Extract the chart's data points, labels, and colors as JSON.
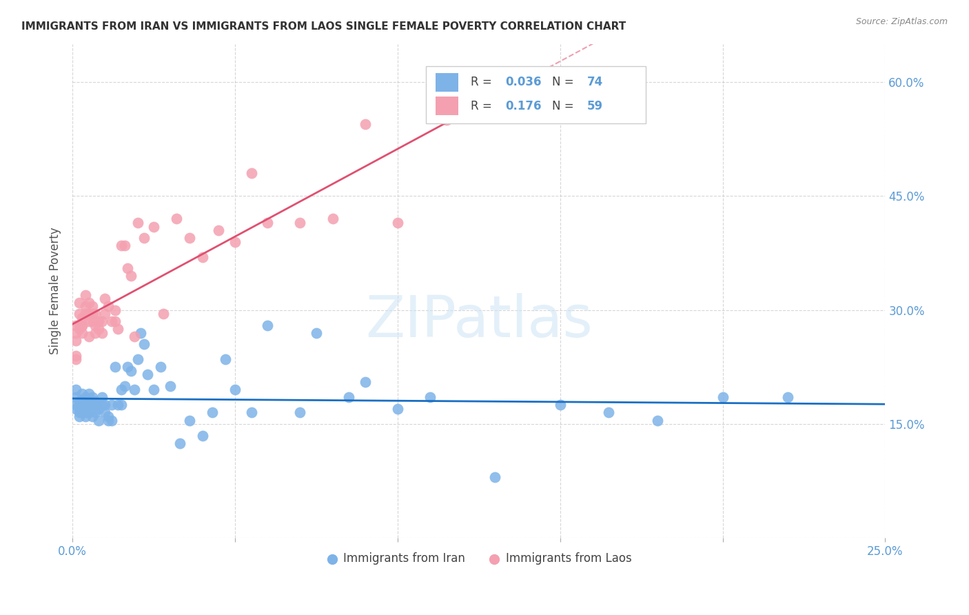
{
  "title": "IMMIGRANTS FROM IRAN VS IMMIGRANTS FROM LAOS SINGLE FEMALE POVERTY CORRELATION CHART",
  "source": "Source: ZipAtlas.com",
  "ylabel": "Single Female Poverty",
  "x_min": 0.0,
  "x_max": 0.25,
  "y_min": 0.0,
  "y_max": 0.65,
  "iran_color": "#7EB3E8",
  "laos_color": "#F4A0B0",
  "iran_R": 0.036,
  "iran_N": 74,
  "laos_R": 0.176,
  "laos_N": 59,
  "iran_line_color": "#1a6fc4",
  "laos_line_color": "#e05070",
  "grid_color": "#cccccc",
  "watermark_color": "#cde4f5",
  "tick_color_blue": "#5b9bd5",
  "tick_color_dark": "#555555",
  "iran_x": [
    0.001,
    0.001,
    0.001,
    0.001,
    0.002,
    0.002,
    0.002,
    0.002,
    0.002,
    0.002,
    0.003,
    0.003,
    0.003,
    0.003,
    0.003,
    0.004,
    0.004,
    0.004,
    0.004,
    0.004,
    0.005,
    0.005,
    0.005,
    0.006,
    0.006,
    0.006,
    0.007,
    0.007,
    0.007,
    0.008,
    0.008,
    0.009,
    0.009,
    0.01,
    0.01,
    0.011,
    0.011,
    0.012,
    0.012,
    0.013,
    0.014,
    0.015,
    0.015,
    0.016,
    0.017,
    0.018,
    0.019,
    0.02,
    0.021,
    0.022,
    0.023,
    0.025,
    0.027,
    0.03,
    0.033,
    0.036,
    0.04,
    0.043,
    0.047,
    0.05,
    0.055,
    0.06,
    0.07,
    0.075,
    0.085,
    0.09,
    0.1,
    0.11,
    0.13,
    0.15,
    0.165,
    0.18,
    0.2,
    0.22
  ],
  "iran_y": [
    0.185,
    0.175,
    0.195,
    0.17,
    0.175,
    0.165,
    0.17,
    0.18,
    0.16,
    0.175,
    0.165,
    0.18,
    0.19,
    0.17,
    0.18,
    0.16,
    0.175,
    0.165,
    0.17,
    0.185,
    0.165,
    0.175,
    0.19,
    0.16,
    0.175,
    0.185,
    0.18,
    0.165,
    0.175,
    0.155,
    0.17,
    0.175,
    0.185,
    0.175,
    0.165,
    0.16,
    0.155,
    0.155,
    0.175,
    0.225,
    0.175,
    0.175,
    0.195,
    0.2,
    0.225,
    0.22,
    0.195,
    0.235,
    0.27,
    0.255,
    0.215,
    0.195,
    0.225,
    0.2,
    0.125,
    0.155,
    0.135,
    0.165,
    0.235,
    0.195,
    0.165,
    0.28,
    0.165,
    0.27,
    0.185,
    0.205,
    0.17,
    0.185,
    0.08,
    0.175,
    0.165,
    0.155,
    0.185,
    0.185
  ],
  "laos_x": [
    0.001,
    0.001,
    0.001,
    0.001,
    0.001,
    0.002,
    0.002,
    0.002,
    0.002,
    0.003,
    0.003,
    0.003,
    0.003,
    0.004,
    0.004,
    0.004,
    0.005,
    0.005,
    0.005,
    0.005,
    0.006,
    0.006,
    0.006,
    0.007,
    0.007,
    0.007,
    0.008,
    0.008,
    0.009,
    0.009,
    0.01,
    0.01,
    0.011,
    0.012,
    0.013,
    0.013,
    0.014,
    0.015,
    0.016,
    0.017,
    0.018,
    0.019,
    0.02,
    0.022,
    0.025,
    0.028,
    0.032,
    0.036,
    0.04,
    0.045,
    0.05,
    0.055,
    0.06,
    0.07,
    0.08,
    0.09,
    0.1,
    0.115,
    0.13
  ],
  "laos_y": [
    0.26,
    0.24,
    0.27,
    0.28,
    0.235,
    0.28,
    0.275,
    0.31,
    0.295,
    0.28,
    0.29,
    0.27,
    0.28,
    0.305,
    0.32,
    0.295,
    0.265,
    0.285,
    0.295,
    0.31,
    0.285,
    0.295,
    0.305,
    0.27,
    0.28,
    0.295,
    0.275,
    0.285,
    0.27,
    0.285,
    0.295,
    0.315,
    0.305,
    0.285,
    0.285,
    0.3,
    0.275,
    0.385,
    0.385,
    0.355,
    0.345,
    0.265,
    0.415,
    0.395,
    0.41,
    0.295,
    0.42,
    0.395,
    0.37,
    0.405,
    0.39,
    0.48,
    0.415,
    0.415,
    0.42,
    0.545,
    0.415,
    0.55,
    0.58
  ]
}
